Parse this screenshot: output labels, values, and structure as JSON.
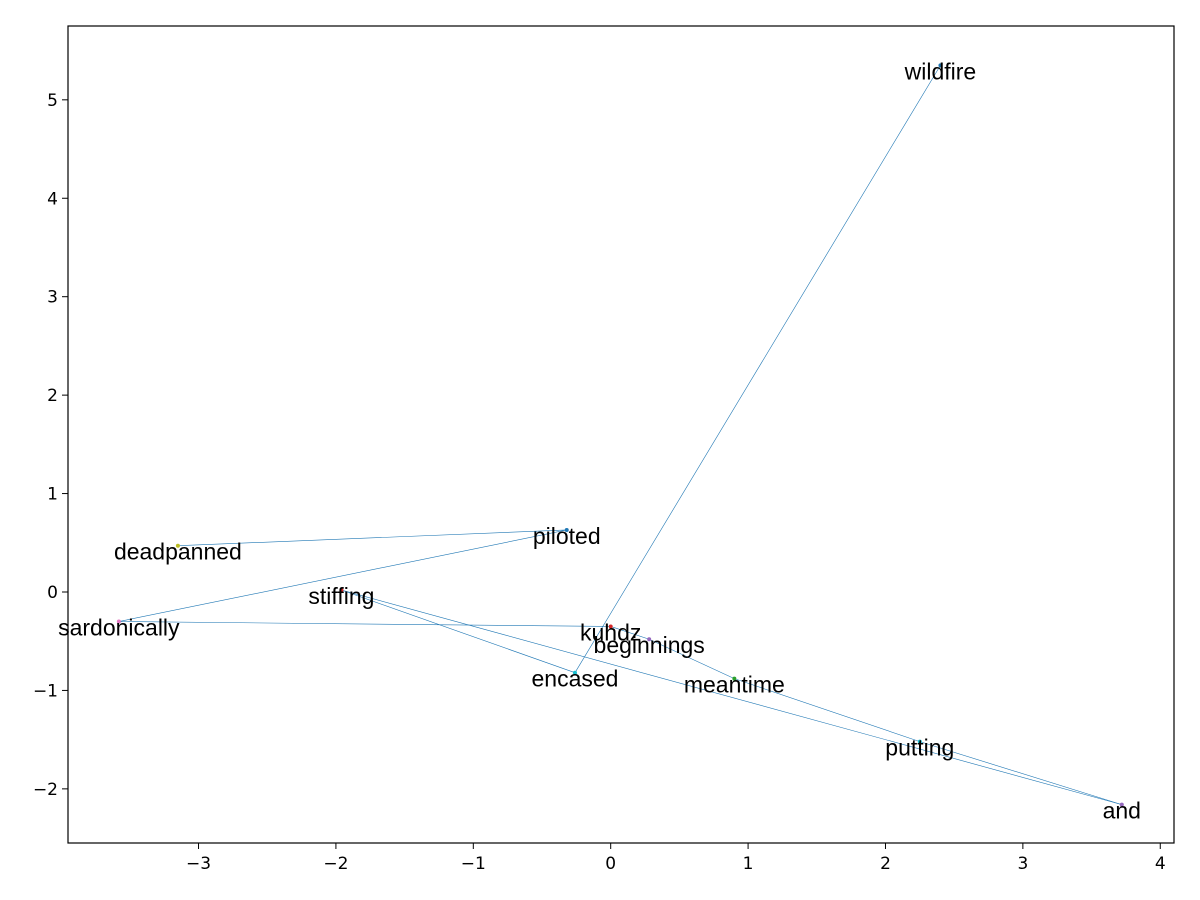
{
  "chart_data": {
    "type": "scatter",
    "title": "",
    "xlabel": "",
    "ylabel": "",
    "xlim": [
      -3.95,
      4.1
    ],
    "ylim": [
      -2.55,
      5.75
    ],
    "grid": false,
    "x_ticks": [
      -3,
      -2,
      -1,
      0,
      1,
      2,
      3,
      4
    ],
    "y_ticks": [
      -2,
      -1,
      0,
      1,
      2,
      3,
      4,
      5
    ],
    "x_tick_labels": [
      "−3",
      "−2",
      "−1",
      "0",
      "1",
      "2",
      "3",
      "4"
    ],
    "y_tick_labels": [
      "−2",
      "−1",
      "0",
      "1",
      "2",
      "3",
      "4",
      "5"
    ],
    "line_color": "#1f77b4",
    "points": [
      {
        "label": "deadpanned",
        "x": -3.15,
        "y": 0.47,
        "color": "#bcbd22"
      },
      {
        "label": "piloted",
        "x": -0.32,
        "y": 0.63,
        "color": "#1f77b4"
      },
      {
        "label": "sardonically",
        "x": -3.58,
        "y": -0.3,
        "color": "#e377c2"
      },
      {
        "label": "kuhdz",
        "x": 0.0,
        "y": -0.35,
        "color": "#d62728"
      },
      {
        "label": "beginnings",
        "x": 0.28,
        "y": -0.48,
        "color": "#9467bd"
      },
      {
        "label": "meantime",
        "x": 0.9,
        "y": -0.88,
        "color": "#2ca02c"
      },
      {
        "label": "putting",
        "x": 2.25,
        "y": -1.52,
        "color": "#17becf"
      },
      {
        "label": "and",
        "x": 3.72,
        "y": -2.16,
        "color": "#9467bd"
      },
      {
        "label": "stiffing",
        "x": -1.96,
        "y": 0.02,
        "color": "#d62728"
      },
      {
        "label": "encased",
        "x": -0.26,
        "y": -0.82,
        "color": "#17becf"
      },
      {
        "label": "wildfire",
        "x": 2.4,
        "y": 5.35,
        "color": "#1f77b4"
      }
    ]
  }
}
